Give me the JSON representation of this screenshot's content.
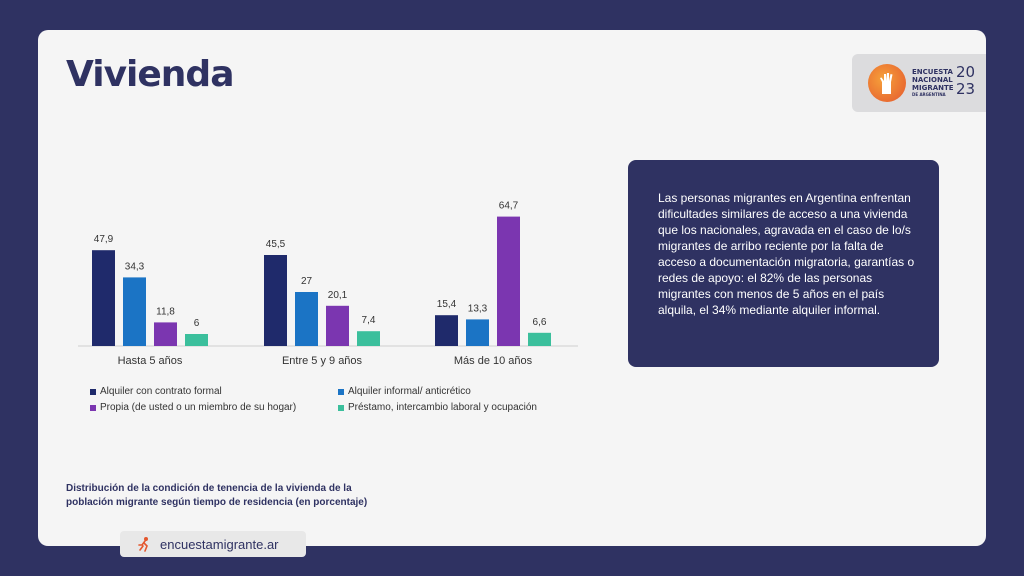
{
  "page": {
    "title": "Vivienda",
    "logo": {
      "line1": "ENCUESTA",
      "line2": "NACIONAL",
      "line3": "MIGRANTE",
      "line4": "DE ARGENTINA",
      "year_top": "20",
      "year_bottom": "23"
    },
    "info_text": "Las personas migrantes en Argentina enfrentan dificultades similares de acceso a una vivienda que los nacionales, agravada en el caso de lo/s migrantes de arribo reciente por la falta de acceso a documentación migratoria, garantías o redes de apoyo: el 82% de las personas migrantes con menos de 5 años en el país alquila, el 34% mediante alquiler informal.",
    "caption": "Distribución de la condición de tenencia de la vivienda de la población migrante según tiempo de residencia (en porcentaje)",
    "footer_url": "encuestamigrante.ar"
  },
  "chart_data": {
    "type": "bar",
    "categories": [
      "Hasta 5 años",
      "Entre 5 y 9 años",
      "Más de 10 años"
    ],
    "series": [
      {
        "name": "Alquiler con contrato formal",
        "values": [
          47.9,
          45.5,
          15.4
        ],
        "labels": [
          "47,9",
          "45,5",
          "15,4"
        ],
        "color": "#1f2a6b"
      },
      {
        "name": "Alquiler informal/ anticrético",
        "values": [
          34.3,
          27,
          13.3
        ],
        "labels": [
          "34,3",
          "27",
          "13,3"
        ],
        "color": "#1b74c5"
      },
      {
        "name": "Propia (de usted o un miembro de su hogar)",
        "values": [
          11.8,
          20.1,
          64.7
        ],
        "labels": [
          "11,8",
          "20,1",
          "64,7"
        ],
        "color": "#7b36b0"
      },
      {
        "name": "Préstamo, intercambio laboral y ocupación",
        "values": [
          6,
          7.4,
          6.6
        ],
        "labels": [
          "6",
          "7,4",
          "6,6"
        ],
        "color": "#3bbf9c"
      }
    ],
    "ylim": [
      0,
      70
    ],
    "grid": false,
    "legend_position": "bottom"
  }
}
